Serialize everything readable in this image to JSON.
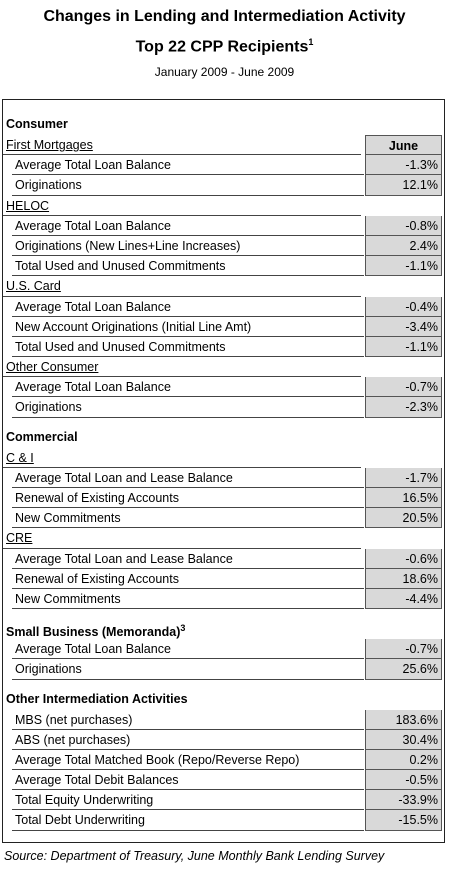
{
  "header": {
    "title": "Changes in Lending and Intermediation Activity",
    "subtitle": "Top 22 CPP Recipients",
    "subtitle_note": "1",
    "period": "January 2009 - June 2009"
  },
  "table": {
    "column_header": "June",
    "sections": [
      {
        "title": "Consumer",
        "groups": [
          {
            "name": "First Mortgages",
            "rows": [
              [
                "Average Total Loan Balance",
                "-1.3%"
              ],
              [
                "Originations",
                "12.1%"
              ]
            ]
          },
          {
            "name": "HELOC",
            "rows": [
              [
                "Average Total Loan Balance",
                "-0.8%"
              ],
              [
                "Originations (New Lines+Line Increases)",
                "2.4%"
              ],
              [
                "Total Used and Unused Commitments",
                "-1.1%"
              ]
            ]
          },
          {
            "name": "U.S. Card",
            "rows": [
              [
                "Average Total Loan Balance",
                "-0.4%"
              ],
              [
                "New Account Originations (Initial Line Amt)",
                "-3.4%"
              ],
              [
                "Total Used and Unused Commitments",
                "-1.1%"
              ]
            ]
          },
          {
            "name": "Other Consumer",
            "rows": [
              [
                "Average Total Loan Balance",
                "-0.7%"
              ],
              [
                "Originations",
                "-2.3%"
              ]
            ]
          }
        ]
      },
      {
        "title": "Commercial",
        "groups": [
          {
            "name": "C & I",
            "rows": [
              [
                "Average Total Loan and Lease Balance",
                "-1.7%"
              ],
              [
                "Renewal of Existing Accounts",
                "16.5%"
              ],
              [
                "New Commitments",
                "20.5%"
              ]
            ]
          },
          {
            "name": "CRE",
            "rows": [
              [
                "Average Total Loan and Lease Balance",
                "-0.6%"
              ],
              [
                "Renewal of Existing Accounts",
                "18.6%"
              ],
              [
                "New Commitments",
                "-4.4%"
              ]
            ]
          }
        ]
      },
      {
        "title": "Small Business (Memoranda)",
        "note": "3",
        "rows": [
          [
            "Average Total Loan Balance",
            "-0.7%"
          ],
          [
            "Originations",
            "25.6%"
          ]
        ]
      },
      {
        "title": "Other Intermediation Activities",
        "rows": [
          [
            "MBS (net purchases)",
            "183.6%"
          ],
          [
            "ABS (net purchases)",
            "30.4%"
          ],
          [
            "Average Total Matched Book (Repo/Reverse Repo)",
            "0.2%"
          ],
          [
            "Average Total Debit Balances",
            "-0.5%"
          ],
          [
            "Total Equity Underwriting",
            "-33.9%"
          ],
          [
            "Total Debt Underwriting",
            "-15.5%"
          ]
        ]
      }
    ]
  },
  "footer": {
    "source": "Source: Department of Treasury, June Monthly Bank Lending Survey"
  }
}
